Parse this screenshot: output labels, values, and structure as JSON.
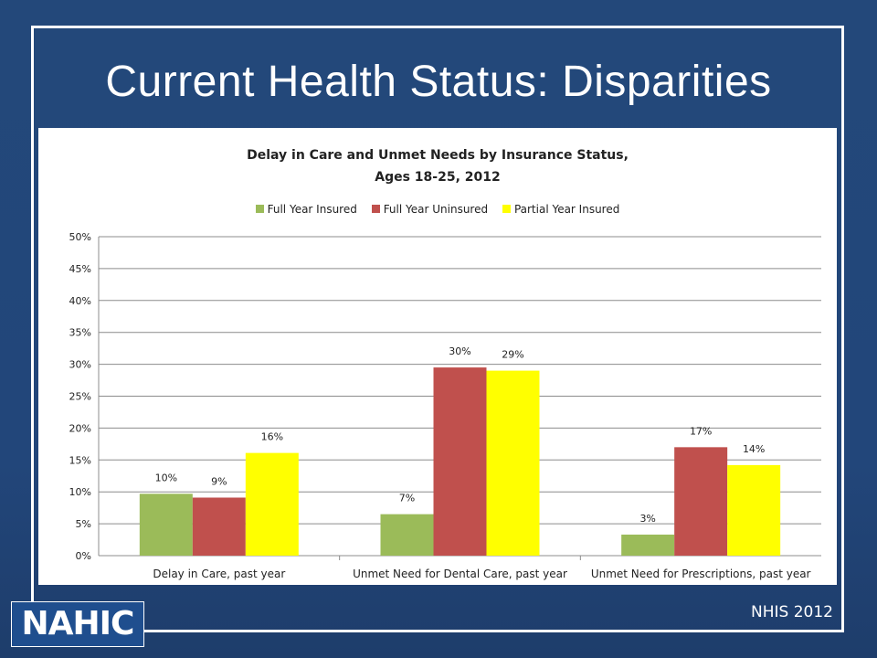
{
  "slide": {
    "title": "Current Health Status: Disparities",
    "logo_text": "NAHIC",
    "source": "NHIS 2012"
  },
  "colors": {
    "background": "#22467a",
    "frame": "#ffffff"
  },
  "chart_data": {
    "type": "bar",
    "title_lines": [
      "Delay in Care and Unmet Needs by Insurance Status,",
      "Ages 18-25, 2012"
    ],
    "categories": [
      "Delay in Care, past year",
      "Unmet Need for Dental Care, past year",
      "Unmet Need for Prescriptions, past year"
    ],
    "series": [
      {
        "name": "Full Year Insured",
        "color": "#9bbb59",
        "values": [
          9.7,
          6.5,
          3.3
        ],
        "labels": [
          "10%",
          "7%",
          "3%"
        ]
      },
      {
        "name": "Full Year Uninsured",
        "color": "#c0504d",
        "values": [
          9.1,
          29.5,
          17.0
        ],
        "labels": [
          "9%",
          "30%",
          "17%"
        ]
      },
      {
        "name": "Partial Year Insured",
        "color": "#ffff00",
        "values": [
          16.1,
          29.0,
          14.2
        ],
        "labels": [
          "16%",
          "29%",
          "14%"
        ]
      }
    ],
    "yticks": [
      "0%",
      "5%",
      "10%",
      "15%",
      "20%",
      "25%",
      "30%",
      "35%",
      "40%",
      "45%",
      "50%"
    ],
    "ylim": [
      0,
      50
    ],
    "grid": true,
    "legend_position": "top"
  }
}
